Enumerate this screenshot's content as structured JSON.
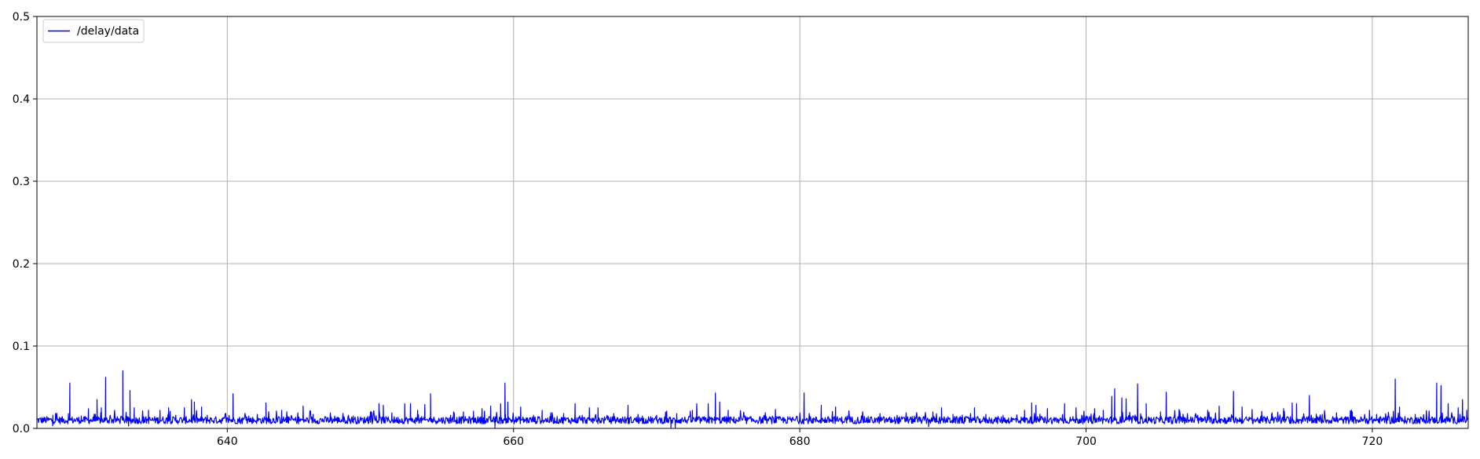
{
  "chart_data": {
    "type": "line",
    "xlim": [
      626.7,
      726.7
    ],
    "ylim": [
      0,
      0.5
    ],
    "x_ticks": [
      640,
      660,
      680,
      700,
      720
    ],
    "y_ticks": [
      0.0,
      0.1,
      0.2,
      0.3,
      0.4,
      0.5
    ],
    "x_tick_labels": [
      "640",
      "660",
      "680",
      "700",
      "720"
    ],
    "y_tick_labels": [
      "0.0",
      "0.1",
      "0.2",
      "0.3",
      "0.4",
      "0.5"
    ],
    "grid": true,
    "legend": "top-left",
    "series": [
      {
        "name": "/delay/data",
        "color": "#0000ff",
        "baseline": 0.01,
        "spikes": [
          [
            628.0,
            0.018
          ],
          [
            628.9,
            0.018
          ],
          [
            629.0,
            0.055
          ],
          [
            629.8,
            0.015
          ],
          [
            630.3,
            0.024
          ],
          [
            630.9,
            0.035
          ],
          [
            631.2,
            0.025
          ],
          [
            631.5,
            0.062
          ],
          [
            632.7,
            0.07
          ],
          [
            633.2,
            0.046
          ],
          [
            633.5,
            0.025
          ],
          [
            634.5,
            0.022
          ],
          [
            635.3,
            0.022
          ],
          [
            635.9,
            0.025
          ],
          [
            636.4,
            0.016
          ],
          [
            637.0,
            0.025
          ],
          [
            637.5,
            0.035
          ],
          [
            637.7,
            0.032
          ],
          [
            638.2,
            0.026
          ],
          [
            638.6,
            0.016
          ],
          [
            640.4,
            0.042
          ],
          [
            641.5,
            0.015
          ],
          [
            642.1,
            0.017
          ],
          [
            642.7,
            0.031
          ],
          [
            643.8,
            0.022
          ],
          [
            645.3,
            0.027
          ],
          [
            646.0,
            0.017
          ],
          [
            647.5,
            0.015
          ],
          [
            648.8,
            0.015
          ],
          [
            650.0,
            0.02
          ],
          [
            650.6,
            0.03
          ],
          [
            650.9,
            0.028
          ],
          [
            651.5,
            0.019
          ],
          [
            652.4,
            0.03
          ],
          [
            652.8,
            0.03
          ],
          [
            653.3,
            0.022
          ],
          [
            653.8,
            0.029
          ],
          [
            654.2,
            0.042
          ],
          [
            655.6,
            0.016
          ],
          [
            656.5,
            0.02
          ],
          [
            657.2,
            0.021
          ],
          [
            657.8,
            0.024
          ],
          [
            658.4,
            0.027
          ],
          [
            659.1,
            0.03
          ],
          [
            659.4,
            0.055
          ],
          [
            659.6,
            0.032
          ],
          [
            660.5,
            0.026
          ],
          [
            661.4,
            0.016
          ],
          [
            662.0,
            0.022
          ],
          [
            662.6,
            0.019
          ],
          [
            663.5,
            0.018
          ],
          [
            664.3,
            0.03
          ],
          [
            664.8,
            0.016
          ],
          [
            665.3,
            0.025
          ],
          [
            665.9,
            0.025
          ],
          [
            667.0,
            0.018
          ],
          [
            668.0,
            0.028
          ],
          [
            669.0,
            0.015
          ],
          [
            670.0,
            0.016
          ],
          [
            670.7,
            0.021
          ],
          [
            671.4,
            0.018
          ],
          [
            672.5,
            0.022
          ],
          [
            672.8,
            0.03
          ],
          [
            673.6,
            0.03
          ],
          [
            674.1,
            0.043
          ],
          [
            674.4,
            0.032
          ],
          [
            675.0,
            0.022
          ],
          [
            676.2,
            0.015
          ],
          [
            677.6,
            0.016
          ],
          [
            678.3,
            0.023
          ],
          [
            680.3,
            0.043
          ],
          [
            681.5,
            0.028
          ],
          [
            682.5,
            0.026
          ],
          [
            683.3,
            0.015
          ],
          [
            684.3,
            0.015
          ],
          [
            685.6,
            0.018
          ],
          [
            686.8,
            0.016
          ],
          [
            688.0,
            0.015
          ],
          [
            689.3,
            0.02
          ],
          [
            689.9,
            0.025
          ],
          [
            690.7,
            0.017
          ],
          [
            692.2,
            0.025
          ],
          [
            693.0,
            0.017
          ],
          [
            694.2,
            0.016
          ],
          [
            695.7,
            0.022
          ],
          [
            696.2,
            0.031
          ],
          [
            696.5,
            0.028
          ],
          [
            697.3,
            0.024
          ],
          [
            698.5,
            0.03
          ],
          [
            699.3,
            0.025
          ],
          [
            700.0,
            0.015
          ],
          [
            700.6,
            0.024
          ],
          [
            701.2,
            0.022
          ],
          [
            701.8,
            0.039
          ],
          [
            702.0,
            0.048
          ],
          [
            702.5,
            0.037
          ],
          [
            702.8,
            0.036
          ],
          [
            703.6,
            0.054
          ],
          [
            704.2,
            0.03
          ],
          [
            705.2,
            0.02
          ],
          [
            705.6,
            0.044
          ],
          [
            706.5,
            0.023
          ],
          [
            707.8,
            0.016
          ],
          [
            708.5,
            0.022
          ],
          [
            709.3,
            0.027
          ],
          [
            710.3,
            0.045
          ],
          [
            710.9,
            0.026
          ],
          [
            711.6,
            0.023
          ],
          [
            712.3,
            0.016
          ],
          [
            713.0,
            0.019
          ],
          [
            713.8,
            0.024
          ],
          [
            714.4,
            0.031
          ],
          [
            714.7,
            0.03
          ],
          [
            715.6,
            0.04
          ],
          [
            716.5,
            0.017
          ],
          [
            717.5,
            0.019
          ],
          [
            718.6,
            0.02
          ],
          [
            719.8,
            0.022
          ],
          [
            720.3,
            0.017
          ],
          [
            721.6,
            0.06
          ],
          [
            721.9,
            0.026
          ],
          [
            723.0,
            0.017
          ],
          [
            724.5,
            0.055
          ],
          [
            724.8,
            0.052
          ],
          [
            725.3,
            0.03
          ],
          [
            726.0,
            0.025
          ],
          [
            726.3,
            0.035
          ],
          [
            726.6,
            0.022
          ]
        ],
        "dips": [
          [
            627.8,
            0.003
          ],
          [
            633.1,
            0.003
          ],
          [
            658.7,
            0.001
          ],
          [
            671.0,
            0.001
          ],
          [
            671.3,
            0.001
          ],
          [
            689.0,
            0.002
          ]
        ]
      }
    ]
  }
}
